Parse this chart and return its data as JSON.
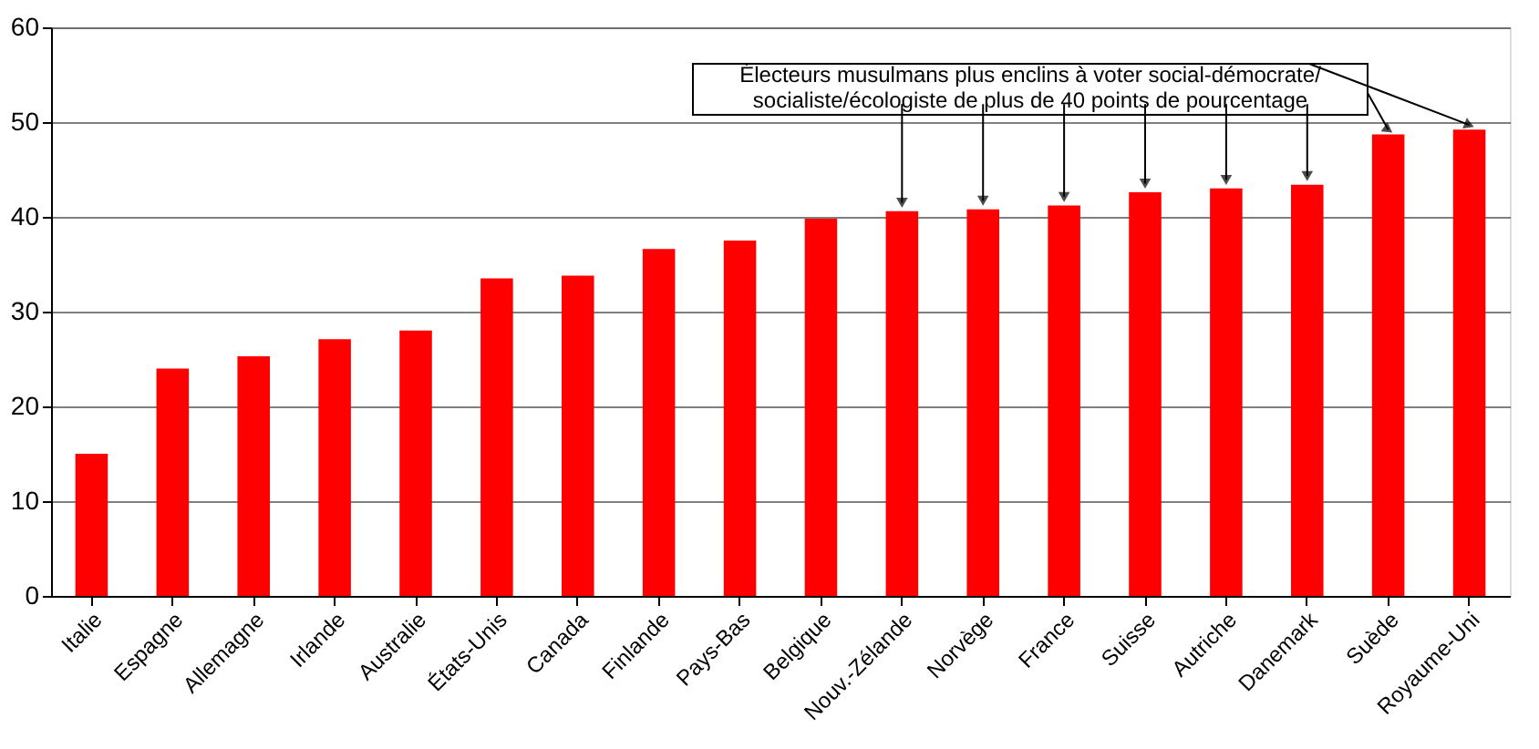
{
  "chart_data": {
    "type": "bar",
    "categories": [
      "Italie",
      "Espagne",
      "Allemagne",
      "Irlande",
      "Australie",
      "États-Unis",
      "Canada",
      "Finlande",
      "Pays-Bas",
      "Belgique",
      "Nouv.-Zélande",
      "Norvège",
      "France",
      "Suisse",
      "Autriche",
      "Danemark",
      "Suède",
      "Royaume-Uni"
    ],
    "values": [
      15,
      24,
      25.3,
      27.1,
      28,
      33.5,
      33.8,
      36.6,
      37.5,
      39.8,
      40.6,
      40.8,
      41.2,
      42.6,
      43,
      43.4,
      48.7,
      49.2
    ],
    "color": "#ff0000",
    "ylim": [
      0,
      60
    ],
    "yticks": [
      0,
      10,
      20,
      30,
      40,
      50,
      60
    ],
    "grid": "y",
    "annotations": [
      {
        "text": "Électeurs musulmans plus enclins à voter social-démocrate/\nsocialiste/écologiste de plus de 40 points de pourcentage",
        "x": "Nouv.-Zélande",
        "y": 40.6
      }
    ]
  }
}
